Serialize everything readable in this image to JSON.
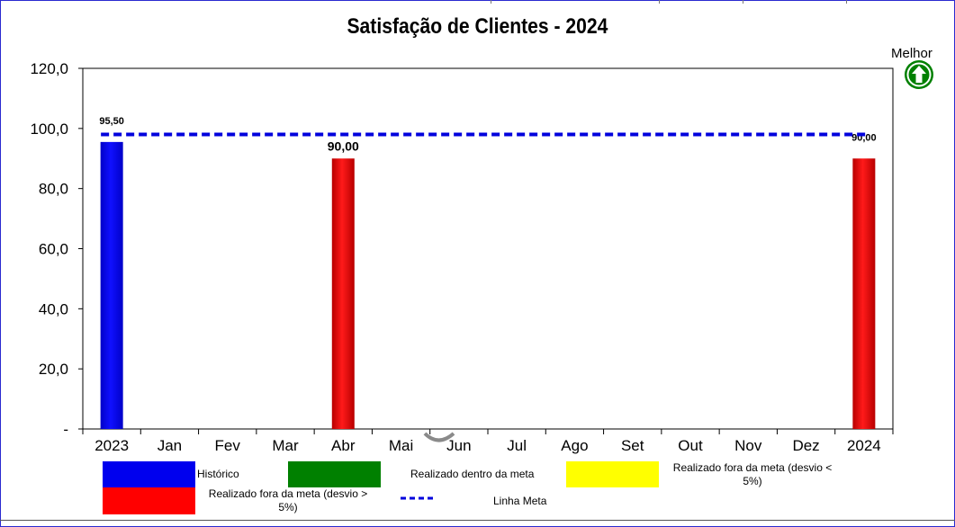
{
  "chart_data": {
    "type": "bar",
    "title": "Satisfação de Clientes - 2024",
    "categories": [
      "2023",
      "Jan",
      "Fev",
      "Mar",
      "Abr",
      "Mai",
      "Jun",
      "Jul",
      "Ago",
      "Set",
      "Out",
      "Nov",
      "Dez",
      "2024"
    ],
    "bars": [
      {
        "category": "2023",
        "value": 95.5,
        "label": "95,50",
        "status": "historico"
      },
      {
        "category": "Abr",
        "value": 90.0,
        "label": "90,00",
        "status": "fora_meta_5"
      },
      {
        "category": "2024",
        "value": 90.0,
        "label": "90,00",
        "status": "fora_meta_5"
      }
    ],
    "target_line": {
      "name": "Linha Meta",
      "value": 98.0
    },
    "ylim": [
      0,
      120
    ],
    "yticks": [
      "-",
      "20,0",
      "40,0",
      "60,0",
      "80,0",
      "100,0",
      "120,0"
    ],
    "grid": false,
    "legend_position": "bottom",
    "legend": [
      {
        "key": "historico",
        "label": "Histórico",
        "color": "#0000ee"
      },
      {
        "key": "dentro_meta",
        "label": "Realizado dentro da meta",
        "color": "#008000"
      },
      {
        "key": "fora_meta_5_amarelo",
        "label": "Realizado fora da meta (desvio < 5%)",
        "color": "#ffff00"
      },
      {
        "key": "fora_meta_5",
        "label": "Realizado fora da meta (desvio > 5%)",
        "color": "#ff0000"
      },
      {
        "key": "linha_meta",
        "label": "Linha Meta",
        "color": "#0000dd"
      }
    ]
  },
  "indicator": {
    "label": "Melhor",
    "icon": "up-arrow-icon",
    "color": "#008000"
  }
}
